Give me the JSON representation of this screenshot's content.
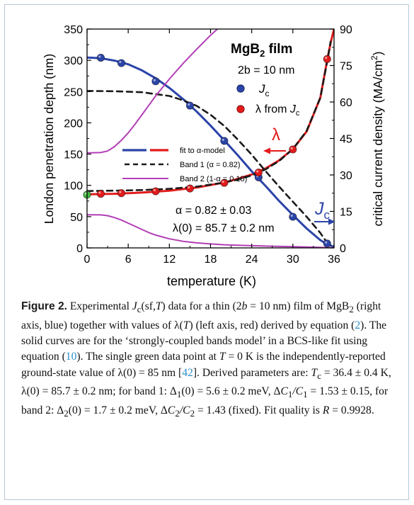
{
  "chart_data": {
    "type": "line",
    "title": "MgB2 film",
    "title_main": "MgB",
    "title_sub": "2",
    "title_rest": " film",
    "thickness_label": "2b = 10 nm",
    "xlabel": "temperature (K)",
    "ylabel_left": "London penetration depth (nm)",
    "ylabel_right_main": "critical current density (MA/cm",
    "ylabel_right_sup": "2",
    "ylabel_right_end": ")",
    "xlim": [
      0,
      36
    ],
    "ylim_left": [
      0,
      350
    ],
    "ylim_right": [
      0,
      90
    ],
    "x_ticks": [
      0,
      6,
      12,
      18,
      24,
      30,
      36
    ],
    "y_ticks_left": [
      0,
      50,
      100,
      150,
      200,
      250,
      300,
      350
    ],
    "y_ticks_right": [
      0,
      15,
      30,
      45,
      60,
      75,
      90
    ],
    "grid": false,
    "series": [
      {
        "name": "Jc",
        "axis": "right",
        "kind": "points",
        "color": "#2b44a8",
        "x": [
          2,
          5,
          10,
          15,
          20,
          25,
          30,
          35
        ],
        "y": [
          78.2,
          76.0,
          68.5,
          58.5,
          44.0,
          29.0,
          12.8,
          1.8
        ]
      },
      {
        "name": "λ from Jc",
        "axis": "left",
        "kind": "points",
        "color": "#e21b1b",
        "x": [
          2,
          5,
          10,
          15,
          20,
          25,
          30,
          35
        ],
        "y": [
          86.5,
          87.5,
          90.5,
          95.0,
          104.0,
          120.5,
          157.5,
          302.0
        ]
      },
      {
        "name": "λ(0) reported",
        "axis": "left",
        "kind": "points",
        "color": "#44b640",
        "x": [
          0
        ],
        "y": [
          85
        ]
      },
      {
        "name": "fit to α-model",
        "axis": "left",
        "kind": "line",
        "color": "#e21b1b",
        "x": [
          0,
          4,
          8,
          12,
          16,
          20,
          22,
          24,
          26,
          28,
          30,
          32,
          34,
          35,
          35.5,
          36
        ],
        "y": [
          85.7,
          86.5,
          88.5,
          91.5,
          96.5,
          104.5,
          110.5,
          117.5,
          127.0,
          140.0,
          158.0,
          186.0,
          240.0,
          300.0,
          328.0,
          350.0
        ]
      },
      {
        "name": "fit to α-model",
        "axis": "right",
        "kind": "line",
        "color": "#2b44a8",
        "x": [
          0,
          2,
          4,
          6,
          8,
          10,
          12,
          14,
          16,
          18,
          20,
          22,
          24,
          26,
          28,
          30,
          32,
          34,
          35,
          36.4
        ],
        "y": [
          78.3,
          78.0,
          77.0,
          75.5,
          73.0,
          69.8,
          65.8,
          61.2,
          56.0,
          50.3,
          44.2,
          38.0,
          31.5,
          25.5,
          19.3,
          13.5,
          8.0,
          3.2,
          1.5,
          0
        ]
      },
      {
        "name": "Band 1 (α = 0.82)",
        "axis": "left",
        "kind": "dashed",
        "color": "#1a1a1a",
        "x": [
          0,
          4,
          8,
          12,
          14,
          16,
          18,
          20,
          22,
          24,
          26,
          28,
          30,
          32,
          34,
          35
        ],
        "y": [
          251,
          250.5,
          249,
          243,
          236,
          227,
          213,
          195,
          173,
          149,
          123,
          98,
          74,
          50,
          24,
          8
        ]
      },
      {
        "name": "Band 1 (α = 0.82)",
        "axis": "left",
        "kind": "dashed",
        "color": "#1a1a1a",
        "x": [
          0,
          4,
          8,
          12,
          16,
          20,
          22,
          24,
          26,
          28,
          30,
          32,
          34,
          35,
          35.5
        ],
        "y": [
          91,
          91.5,
          92.5,
          94.5,
          98.0,
          104.5,
          109.5,
          116.0,
          125.5,
          139.0,
          158.0,
          187.0,
          240.0,
          298.0,
          330.0
        ]
      },
      {
        "name": "Band 2 (1-α = 0.18)",
        "axis": "left",
        "kind": "line",
        "color": "#b23eb6",
        "x": [
          0,
          2,
          3,
          4,
          5,
          6,
          7,
          8,
          9,
          10,
          12,
          14,
          16,
          18,
          19
        ],
        "y": [
          152,
          152.5,
          155,
          162,
          172,
          184,
          198,
          213,
          228,
          243,
          270,
          295,
          318,
          340,
          350
        ]
      },
      {
        "name": "Band 2 (1-α = 0.18)",
        "axis": "left",
        "kind": "line",
        "color": "#b23eb6",
        "x": [
          0,
          2,
          3,
          4,
          5,
          6,
          7,
          8,
          9,
          10,
          12,
          14,
          16,
          18,
          20,
          22,
          24,
          26,
          28,
          30,
          32,
          34,
          36
        ],
        "y": [
          53,
          52.8,
          51.5,
          48.5,
          44.5,
          39.5,
          34.5,
          29.5,
          24.5,
          20.5,
          14.5,
          10.5,
          8.0,
          6.3,
          5.0,
          4.2,
          3.5,
          2.9,
          2.4,
          1.9,
          1.4,
          0.8,
          0
        ]
      }
    ],
    "legend": {
      "position": "center-left",
      "entries": [
        "fit to α-model",
        "Band 1 (α = 0.82)",
        "Band 2 (1-α = 0.18)"
      ]
    },
    "top_legend": {
      "position": "top-right",
      "entries": [
        "J",
        "λ from J"
      ],
      "sub": "c"
    },
    "annotations": {
      "lambda_arrow_label": "λ",
      "jc_arrow_label": "J",
      "jc_arrow_sub": "c",
      "alpha_text": "α = 0.82 ± 0.03",
      "lambda0_text": "λ(0) = 85.7 ± 0.2 nm"
    },
    "colors": {
      "red": "#e21b1b",
      "blue": "#2b44a8",
      "magenta": "#b23eb6",
      "green": "#44b640",
      "black": "#1a1a1a"
    }
  },
  "caption": {
    "figure_label": "Figure 2.",
    "p1": " Experimental ",
    "p2": "(sf,",
    "p3": ") data for a thin (2",
    "p4": " = 10 nm) film of MgB",
    "p5": " (right axis, blue) together with values of λ(",
    "p6": ") (left axis, red) derived by equation (",
    "eq1": "2",
    "p7": "). The solid curves are for the ‘strongly-coupled bands model’ in a BCS-like fit using equation (",
    "eq2": "10",
    "p8": "). The single green data point at ",
    "p9": " = 0 K is the independently-reported ground-state value of λ(0) = 85 nm [",
    "ref": "42",
    "p10": "]. Derived parameters are: ",
    "p11": " = 36.4 ± 0.4 K, λ(0) = 85.7 ± 0.2 nm; for band 1: Δ",
    "p12": "(0) = 5.6 ± 0.2 meV, Δ",
    "p13": " = 1.53 ± 0.15, for band 2: Δ",
    "p14": "(0) = 1.7 ± 0.2 meV, Δ",
    "p15": " = 1.43 (fixed). Fit quality is ",
    "p16": " = 0.9928.",
    "J": "J",
    "c": "c",
    "T": "T",
    "b": "b",
    "two": "2",
    "one": "1",
    "C": "C",
    "slashC": "/C",
    "R": "R"
  }
}
